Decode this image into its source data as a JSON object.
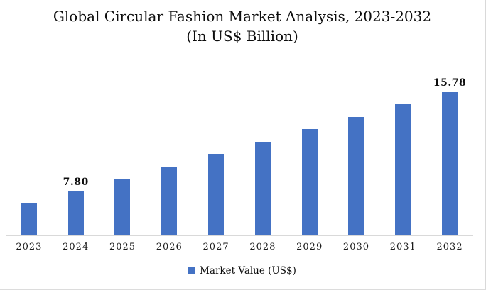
{
  "chart_data": {
    "type": "bar",
    "title": "Global Circular Fashion Market Analysis, 2023-2032 (In US$ Billion)",
    "categories": [
      "2023",
      "2024",
      "2025",
      "2026",
      "2027",
      "2028",
      "2029",
      "2030",
      "2031",
      "2032"
    ],
    "series": [
      {
        "name": "Market Value (US$)",
        "values": [
          6.8,
          7.8,
          8.8,
          9.8,
          10.8,
          11.8,
          12.8,
          13.8,
          14.8,
          15.78
        ]
      }
    ],
    "value_labels": [
      "",
      "7.80",
      "",
      "",
      "",
      "",
      "",
      "",
      "",
      "15.78"
    ],
    "xlabel": "",
    "ylabel": "",
    "ylim": [
      4.3,
      17
    ],
    "grid": false,
    "y_axis_visible": false,
    "legend_position": "bottom",
    "colors": {
      "bar": "#4472C4",
      "axis_line": "#d9d9d9",
      "text": "#0d0d0d",
      "frame_border": "#d9d9d9"
    }
  }
}
